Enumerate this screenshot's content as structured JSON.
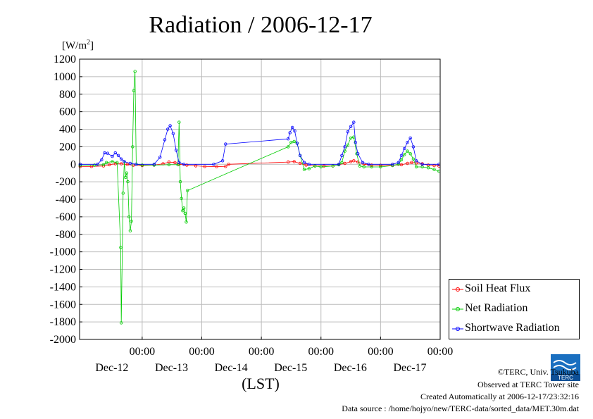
{
  "title": "Radiation / 2006-12-17",
  "units": {
    "base": "[W/m",
    "sup": "2",
    "close": "]"
  },
  "xlabel": "(LST)",
  "x_time_label": "00:00",
  "credits": {
    "copyright": "©TERC, Univ. Tsukuba",
    "observed": "Observed at TERC Tower site",
    "created": "Created Automatically at 2006-12-17/23:32:16",
    "source": "Data source : /home/hojyo/new/TERC-data/sorted_data/MET.30m.dat"
  },
  "logo_text": "TERC",
  "colors": {
    "soil": "#ff0000",
    "net": "#00cc00",
    "shortwave": "#0000ff",
    "grid": "#bbbbbb"
  },
  "chart_data": {
    "type": "line",
    "title": "Radiation / 2006-12-17",
    "xlabel": "(LST)",
    "ylabel": "[W/m2]",
    "x_unit": "days since Dec-12 00:00",
    "xlim": [
      -1.05,
      5.0
    ],
    "ylim": [
      -2000,
      1200
    ],
    "yticks": [
      1200,
      1000,
      800,
      600,
      400,
      200,
      0,
      -200,
      -400,
      -600,
      -800,
      -1000,
      -1200,
      -1400,
      -1600,
      -1800,
      -2000
    ],
    "xticks": [
      {
        "x": 0,
        "time": "00:00",
        "date": "Dec-12"
      },
      {
        "x": 1,
        "time": "00:00",
        "date": "Dec-13"
      },
      {
        "x": 2,
        "time": "00:00",
        "date": "Dec-14"
      },
      {
        "x": 3,
        "time": "00:00",
        "date": "Dec-15"
      },
      {
        "x": 4,
        "time": "00:00",
        "date": "Dec-16"
      },
      {
        "x": 5,
        "time": "00:00",
        "date": "Dec-17"
      }
    ],
    "grid": true,
    "legend_position": "right-bottom",
    "series": [
      {
        "name": "Soil Heat Flux",
        "color": "#ff0000",
        "points": [
          [
            -1.04,
            -25
          ],
          [
            -0.85,
            -25
          ],
          [
            -0.65,
            -20
          ],
          [
            -0.55,
            -5
          ],
          [
            -0.45,
            5
          ],
          [
            -0.35,
            5
          ],
          [
            -0.25,
            -3
          ],
          [
            -0.15,
            -12
          ],
          [
            0.0,
            -15
          ],
          [
            0.2,
            -10
          ],
          [
            0.35,
            5
          ],
          [
            0.45,
            25
          ],
          [
            0.55,
            20
          ],
          [
            0.62,
            0
          ],
          [
            0.75,
            -10
          ],
          [
            0.9,
            -18
          ],
          [
            1.05,
            -25
          ],
          [
            1.25,
            -28
          ],
          [
            1.4,
            -25
          ],
          [
            1.45,
            0
          ],
          [
            2.45,
            25
          ],
          [
            2.55,
            30
          ],
          [
            2.65,
            10
          ],
          [
            2.75,
            -10
          ],
          [
            2.9,
            -18
          ],
          [
            3.05,
            -20
          ],
          [
            3.2,
            -18
          ],
          [
            3.3,
            -5
          ],
          [
            3.4,
            10
          ],
          [
            3.5,
            30
          ],
          [
            3.55,
            40
          ],
          [
            3.62,
            25
          ],
          [
            3.72,
            0
          ],
          [
            3.85,
            -10
          ],
          [
            4.0,
            -12
          ],
          [
            4.2,
            -12
          ],
          [
            4.35,
            -5
          ],
          [
            4.45,
            10
          ],
          [
            4.52,
            20
          ],
          [
            4.6,
            15
          ],
          [
            4.7,
            5
          ],
          [
            4.8,
            -10
          ],
          [
            4.9,
            -15
          ],
          [
            4.98,
            -20
          ]
        ]
      },
      {
        "name": "Net Radiation",
        "color": "#00cc00",
        "points": [
          [
            -1.04,
            -15
          ],
          [
            -0.8,
            -10
          ],
          [
            -0.65,
            -5
          ],
          [
            -0.6,
            20
          ],
          [
            -0.5,
            30
          ],
          [
            -0.42,
            20
          ],
          [
            -0.36,
            -950
          ],
          [
            -0.35,
            -1810
          ],
          [
            -0.32,
            -330
          ],
          [
            -0.3,
            30
          ],
          [
            -0.28,
            -150
          ],
          [
            -0.26,
            -100
          ],
          [
            -0.24,
            -200
          ],
          [
            -0.22,
            -600
          ],
          [
            -0.2,
            -760
          ],
          [
            -0.18,
            -650
          ],
          [
            -0.16,
            200
          ],
          [
            -0.14,
            840
          ],
          [
            -0.12,
            1060
          ],
          [
            -0.1,
            0
          ],
          [
            0.0,
            -10
          ],
          [
            0.2,
            -10
          ],
          [
            0.45,
            -5
          ],
          [
            0.6,
            -5
          ],
          [
            0.62,
            480
          ],
          [
            0.64,
            -200
          ],
          [
            0.66,
            -390
          ],
          [
            0.68,
            -530
          ],
          [
            0.7,
            -500
          ],
          [
            0.72,
            -560
          ],
          [
            0.74,
            -660
          ],
          [
            0.76,
            -300
          ],
          [
            2.45,
            200
          ],
          [
            2.5,
            250
          ],
          [
            2.55,
            260
          ],
          [
            2.6,
            240
          ],
          [
            2.65,
            100
          ],
          [
            2.72,
            -60
          ],
          [
            2.8,
            -50
          ],
          [
            2.9,
            -20
          ],
          [
            3.0,
            -30
          ],
          [
            3.2,
            -20
          ],
          [
            3.3,
            -5
          ],
          [
            3.35,
            20
          ],
          [
            3.4,
            150
          ],
          [
            3.45,
            220
          ],
          [
            3.5,
            300
          ],
          [
            3.55,
            310
          ],
          [
            3.6,
            120
          ],
          [
            3.65,
            -20
          ],
          [
            3.72,
            -30
          ],
          [
            3.85,
            -30
          ],
          [
            4.0,
            -30
          ],
          [
            4.2,
            -15
          ],
          [
            4.3,
            0
          ],
          [
            4.35,
            50
          ],
          [
            4.4,
            110
          ],
          [
            4.45,
            150
          ],
          [
            4.5,
            120
          ],
          [
            4.55,
            60
          ],
          [
            4.6,
            -30
          ],
          [
            4.7,
            -30
          ],
          [
            4.8,
            -40
          ],
          [
            4.9,
            -60
          ],
          [
            4.98,
            -80
          ]
        ]
      },
      {
        "name": "Shortwave Radiation",
        "color": "#0000ff",
        "points": [
          [
            -1.04,
            0
          ],
          [
            -0.75,
            0
          ],
          [
            -0.68,
            50
          ],
          [
            -0.63,
            130
          ],
          [
            -0.58,
            125
          ],
          [
            -0.5,
            90
          ],
          [
            -0.45,
            130
          ],
          [
            -0.4,
            100
          ],
          [
            -0.35,
            60
          ],
          [
            -0.3,
            30
          ],
          [
            -0.2,
            10
          ],
          [
            -0.1,
            0
          ],
          [
            0.2,
            0
          ],
          [
            0.3,
            80
          ],
          [
            0.38,
            280
          ],
          [
            0.43,
            400
          ],
          [
            0.47,
            440
          ],
          [
            0.52,
            350
          ],
          [
            0.57,
            160
          ],
          [
            0.62,
            20
          ],
          [
            0.7,
            0
          ],
          [
            1.2,
            0
          ],
          [
            1.35,
            40
          ],
          [
            1.4,
            230
          ],
          [
            2.45,
            290
          ],
          [
            2.48,
            360
          ],
          [
            2.52,
            420
          ],
          [
            2.56,
            380
          ],
          [
            2.6,
            240
          ],
          [
            2.65,
            100
          ],
          [
            2.72,
            20
          ],
          [
            2.8,
            0
          ],
          [
            3.3,
            0
          ],
          [
            3.35,
            100
          ],
          [
            3.4,
            200
          ],
          [
            3.45,
            370
          ],
          [
            3.5,
            430
          ],
          [
            3.55,
            480
          ],
          [
            3.58,
            250
          ],
          [
            3.62,
            120
          ],
          [
            3.7,
            20
          ],
          [
            3.8,
            0
          ],
          [
            4.2,
            0
          ],
          [
            4.3,
            20
          ],
          [
            4.35,
            100
          ],
          [
            4.4,
            180
          ],
          [
            4.45,
            250
          ],
          [
            4.5,
            300
          ],
          [
            4.55,
            200
          ],
          [
            4.6,
            40
          ],
          [
            4.7,
            0
          ],
          [
            4.98,
            0
          ]
        ]
      }
    ]
  }
}
